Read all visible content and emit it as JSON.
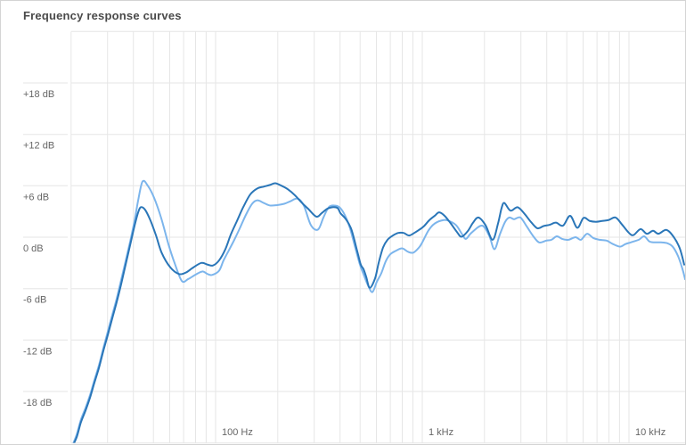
{
  "panel": {
    "title": "Frequency response curves"
  },
  "colors": {
    "background": "#ffffff",
    "panel_border": "#d4d4d4",
    "grid": "#e6e6e6",
    "axis_label": "#666666",
    "title": "#4a4a4a",
    "series_dark": "#2a76b8",
    "series_light": "#7cb5ec"
  },
  "chart_data": {
    "type": "line",
    "title": "Frequency response curves",
    "grid": true,
    "legend": "none",
    "x_axis": {
      "scale": "log",
      "unit": "Hz",
      "min": 20,
      "max": 19000,
      "gridlines": [
        20,
        30,
        40,
        50,
        60,
        70,
        80,
        90,
        100,
        200,
        300,
        400,
        500,
        600,
        700,
        800,
        900,
        1000,
        2000,
        3000,
        4000,
        5000,
        6000,
        7000,
        8000,
        9000,
        10000
      ],
      "tick_labels": [
        {
          "value": 100,
          "label": "100 Hz"
        },
        {
          "value": 1000,
          "label": "1 kHz"
        },
        {
          "value": 10000,
          "label": "10 kHz"
        }
      ]
    },
    "y_axis": {
      "unit": "dB",
      "min": -24,
      "max": 24,
      "gridline_step": 6,
      "gridlines": [
        24,
        18,
        12,
        6,
        0,
        -6,
        -12,
        -18,
        -24
      ],
      "tick_labels": [
        {
          "value": 18,
          "label": "+18 dB"
        },
        {
          "value": 12,
          "label": "+12 dB"
        },
        {
          "value": 6,
          "label": "+6 dB"
        },
        {
          "value": 0,
          "label": "0 dB"
        },
        {
          "value": -6,
          "label": "-6 dB"
        },
        {
          "value": -12,
          "label": "-12 dB"
        },
        {
          "value": -18,
          "label": "-18 dB"
        }
      ]
    },
    "series": [
      {
        "name": "light-blue-curve",
        "color": "#7cb5ec",
        "points": [
          [
            20.2,
            -24.4
          ],
          [
            21.3,
            -23.0
          ],
          [
            22.3,
            -21.3
          ],
          [
            23.5,
            -19.9
          ],
          [
            24.7,
            -18.4
          ],
          [
            25.9,
            -16.7
          ],
          [
            27.3,
            -14.9
          ],
          [
            28.6,
            -13.0
          ],
          [
            30.1,
            -11.0
          ],
          [
            31.6,
            -9.1
          ],
          [
            33.2,
            -7.2
          ],
          [
            34.9,
            -5.0
          ],
          [
            36.7,
            -2.8
          ],
          [
            38.6,
            -0.5
          ],
          [
            40.6,
            2.0
          ],
          [
            42.2,
            4.3
          ],
          [
            44.3,
            6.5
          ],
          [
            47.0,
            6.0
          ],
          [
            50.4,
            4.6
          ],
          [
            54.6,
            2.2
          ],
          [
            59.1,
            -0.8
          ],
          [
            63.3,
            -3.0
          ],
          [
            68.6,
            -5.1
          ],
          [
            73.5,
            -4.9
          ],
          [
            79.6,
            -4.4
          ],
          [
            86.2,
            -4.0
          ],
          [
            91.5,
            -4.3
          ],
          [
            96.1,
            -4.4
          ],
          [
            104,
            -3.9
          ],
          [
            109.3,
            -2.7
          ],
          [
            116.1,
            -1.5
          ],
          [
            123.2,
            -0.3
          ],
          [
            130.7,
            1.0
          ],
          [
            140.1,
            2.6
          ],
          [
            150.2,
            3.9
          ],
          [
            159.4,
            4.3
          ],
          [
            170.9,
            4.0
          ],
          [
            183.2,
            3.7
          ],
          [
            198.4,
            3.75
          ],
          [
            214.7,
            3.9
          ],
          [
            230.2,
            4.2
          ],
          [
            249.3,
            4.5
          ],
          [
            267.1,
            3.7
          ],
          [
            289.2,
            1.4
          ],
          [
            313.1,
            0.9
          ],
          [
            332.4,
            2.3
          ],
          [
            352.7,
            3.5
          ],
          [
            374.3,
            3.7
          ],
          [
            397.3,
            3.5
          ],
          [
            421.7,
            2.6
          ],
          [
            447.6,
            1.0
          ],
          [
            475,
            -1.3
          ],
          [
            499.3,
            -3.2
          ],
          [
            519.4,
            -4.3
          ],
          [
            545.9,
            -5.6
          ],
          [
            573.6,
            -6.4
          ],
          [
            602.8,
            -5.2
          ],
          [
            633.4,
            -4.2
          ],
          [
            665.8,
            -2.8
          ],
          [
            699.6,
            -2.0
          ],
          [
            742.5,
            -1.6
          ],
          [
            799,
            -1.3
          ],
          [
            853,
            -1.7
          ],
          [
            905.3,
            -1.8
          ],
          [
            964.4,
            -1.2
          ],
          [
            1000,
            -0.6
          ],
          [
            1072,
            0.8
          ],
          [
            1149,
            1.6
          ],
          [
            1269,
            2.0
          ],
          [
            1347,
            1.9
          ],
          [
            1458,
            1.4
          ],
          [
            1563,
            0.3
          ],
          [
            1627,
            -0.2
          ],
          [
            1727,
            0.5
          ],
          [
            1945,
            1.35
          ],
          [
            2105,
            0.2
          ],
          [
            2234,
            -1.4
          ],
          [
            2371,
            0.3
          ],
          [
            2517,
            1.8
          ],
          [
            2640,
            2.3
          ],
          [
            2780,
            2.1
          ],
          [
            2980,
            2.3
          ],
          [
            3194,
            1.3
          ],
          [
            3424,
            0.2
          ],
          [
            3671,
            -0.6
          ],
          [
            3973,
            -0.4
          ],
          [
            4217,
            -0.3
          ],
          [
            4476,
            0.1
          ],
          [
            4750,
            -0.2
          ],
          [
            5090,
            -0.3
          ],
          [
            5515,
            0.0
          ],
          [
            5850,
            -0.3
          ],
          [
            6270,
            0.4
          ],
          [
            6724,
            -0.1
          ],
          [
            7208,
            -0.3
          ],
          [
            7802,
            -0.4
          ],
          [
            8365,
            -0.8
          ],
          [
            9055,
            -1.1
          ],
          [
            9612,
            -0.8
          ],
          [
            10200,
            -0.6
          ],
          [
            11150,
            -0.3
          ],
          [
            11840,
            0.1
          ],
          [
            12560,
            -0.5
          ],
          [
            13340,
            -0.6
          ],
          [
            14300,
            -0.6
          ],
          [
            15320,
            -0.7
          ],
          [
            16270,
            -1.1
          ],
          [
            17270,
            -2.2
          ],
          [
            18140,
            -3.7
          ],
          [
            18690,
            -4.9
          ]
        ]
      },
      {
        "name": "dark-blue-curve",
        "color": "#2a76b8",
        "points": [
          [
            20.2,
            -24.5
          ],
          [
            21.3,
            -23.3
          ],
          [
            22.3,
            -21.6
          ],
          [
            23.5,
            -20.2
          ],
          [
            24.7,
            -18.7
          ],
          [
            25.9,
            -17.0
          ],
          [
            27.3,
            -15.2
          ],
          [
            28.6,
            -13.3
          ],
          [
            30.1,
            -11.4
          ],
          [
            31.6,
            -9.5
          ],
          [
            33.2,
            -7.6
          ],
          [
            34.9,
            -5.5
          ],
          [
            36.7,
            -3.2
          ],
          [
            38.6,
            -0.9
          ],
          [
            40.6,
            1.4
          ],
          [
            42.2,
            2.9
          ],
          [
            43.5,
            3.5
          ],
          [
            45.6,
            3.2
          ],
          [
            48.3,
            2.0
          ],
          [
            51.5,
            0.2
          ],
          [
            54.8,
            -1.8
          ],
          [
            60.3,
            -3.5
          ],
          [
            66.6,
            -4.3
          ],
          [
            72.1,
            -4.1
          ],
          [
            77.2,
            -3.6
          ],
          [
            85.3,
            -3.0
          ],
          [
            91.5,
            -3.2
          ],
          [
            97.1,
            -3.3
          ],
          [
            104,
            -2.7
          ],
          [
            111.5,
            -1.4
          ],
          [
            118.4,
            0.3
          ],
          [
            126.9,
            1.9
          ],
          [
            136,
            3.5
          ],
          [
            147.2,
            5.0
          ],
          [
            159.4,
            5.7
          ],
          [
            170.9,
            5.9
          ],
          [
            183.2,
            6.1
          ],
          [
            194.4,
            6.3
          ],
          [
            208.5,
            6.0
          ],
          [
            223.5,
            5.6
          ],
          [
            241.9,
            4.9
          ],
          [
            261.9,
            4.0
          ],
          [
            280.7,
            3.3
          ],
          [
            307.1,
            2.4
          ],
          [
            325.8,
            2.8
          ],
          [
            345.8,
            3.3
          ],
          [
            367.1,
            3.5
          ],
          [
            389.4,
            3.4
          ],
          [
            402,
            2.8
          ],
          [
            427,
            2.1
          ],
          [
            454,
            0.9
          ],
          [
            484,
            -1.6
          ],
          [
            504,
            -3.2
          ],
          [
            519,
            -3.7
          ],
          [
            535,
            -4.6
          ],
          [
            557,
            -5.9
          ],
          [
            591,
            -4.8
          ],
          [
            615,
            -3.0
          ],
          [
            646,
            -1.2
          ],
          [
            679,
            -0.3
          ],
          [
            721,
            0.2
          ],
          [
            765,
            0.5
          ],
          [
            812,
            0.5
          ],
          [
            862,
            0.2
          ],
          [
            915,
            0.5
          ],
          [
            971,
            0.9
          ],
          [
            1020,
            1.3
          ],
          [
            1083,
            2.0
          ],
          [
            1149,
            2.5
          ],
          [
            1207,
            2.9
          ],
          [
            1282,
            2.5
          ],
          [
            1374,
            1.6
          ],
          [
            1472,
            0.6
          ],
          [
            1548,
            0.05
          ],
          [
            1659,
            0.7
          ],
          [
            1761,
            1.7
          ],
          [
            1869,
            2.3
          ],
          [
            2023,
            1.4
          ],
          [
            2190,
            -0.3
          ],
          [
            2325,
            1.6
          ],
          [
            2419,
            3.4
          ],
          [
            2495,
            4.0
          ],
          [
            2671,
            3.1
          ],
          [
            2892,
            3.5
          ],
          [
            3131,
            2.7
          ],
          [
            3323,
            1.9
          ],
          [
            3598,
            1.05
          ],
          [
            3857,
            1.3
          ],
          [
            4134,
            1.45
          ],
          [
            4432,
            1.7
          ],
          [
            4797,
            1.35
          ],
          [
            5193,
            2.5
          ],
          [
            5623,
            1.1
          ],
          [
            6026,
            2.25
          ],
          [
            6460,
            1.9
          ],
          [
            6925,
            1.8
          ],
          [
            7424,
            1.9
          ],
          [
            7959,
            2.0
          ],
          [
            8616,
            2.3
          ],
          [
            9235,
            1.5
          ],
          [
            10000,
            0.5
          ],
          [
            10520,
            0.25
          ],
          [
            11380,
            0.95
          ],
          [
            12200,
            0.4
          ],
          [
            13070,
            0.75
          ],
          [
            13880,
            0.4
          ],
          [
            15170,
            0.85
          ],
          [
            16430,
            0.05
          ],
          [
            17610,
            -1.3
          ],
          [
            18500,
            -3.2
          ]
        ]
      }
    ]
  }
}
